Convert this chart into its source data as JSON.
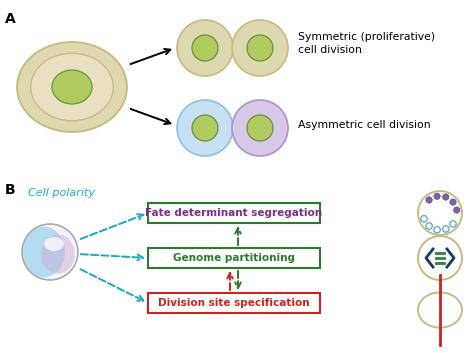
{
  "bg_color": "#ffffff",
  "label_A": "A",
  "label_B": "B",
  "cell_polarity_text": "Cell polarity",
  "cell_polarity_color": "#1ab0cc",
  "sym_text": "Symmetric (proliferative)\ncell division",
  "asym_text": "Asymmetric cell division",
  "box1_text": "Fate determinant segregation",
  "box1_text_color": "#7b2d8b",
  "box1_border_color": "#2d7a2d",
  "box2_text": "Genome partitioning",
  "box2_text_color": "#2d7a2d",
  "box2_border_color": "#2d7a2d",
  "box3_text": "Division site specification",
  "box3_text_color": "#cc2222",
  "box3_border_color": "#cc2222",
  "tan_outer": "#c8b882",
  "tan_inner": "#ddd8b0",
  "tan_fill": "#e8e0c0",
  "green_nucleus": "#b0cc60",
  "blue_outer": "#90c0e0",
  "blue_inner": "#c8e0f4",
  "purple_outer": "#b090c8",
  "purple_inner": "#d8c8e8",
  "nucleus_edge": "#6a9040",
  "arrow_cyan": "#18a8c8",
  "arrow_green": "#2d7a2d",
  "arrow_red": "#cc2222",
  "icon_tan": "#c8b882",
  "dot_purple": "#8060a8",
  "dot_cyan": "#50a8c0",
  "bracket_navy": "#1a3870",
  "line_green": "#2d8040"
}
